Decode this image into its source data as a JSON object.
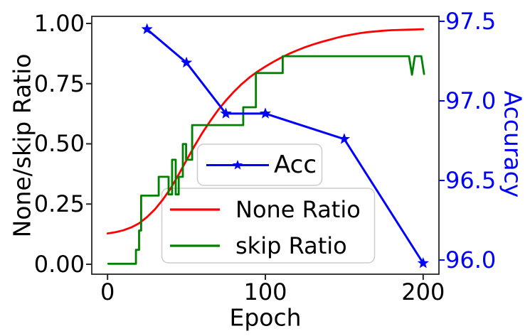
{
  "chart_data": {
    "type": "line",
    "xlabel": "Epoch",
    "ylabel_left": "None/skip Ratio",
    "ylabel_right": "Accuracy",
    "xlim": [
      -10,
      210
    ],
    "ylim_left": [
      -0.0413,
      1.0295
    ],
    "ylim_right": [
      95.911,
      97.531
    ],
    "grid": false,
    "x_ticks": {
      "labels": [
        "0",
        "100",
        "200"
      ],
      "values": [
        0,
        100,
        200
      ]
    },
    "y_ticks_left": {
      "labels": [
        "0.00",
        "0.25",
        "0.50",
        "0.75",
        "1.00"
      ],
      "values": [
        0,
        0.25,
        0.5,
        0.75,
        1.0
      ]
    },
    "y_ticks_right": {
      "labels": [
        "96.0",
        "96.5",
        "97.0",
        "97.5"
      ],
      "values": [
        96.0,
        96.5,
        97.0,
        97.5
      ]
    },
    "colors": {
      "acc": "#0000ff",
      "none_ratio": "#ff0000",
      "skip_ratio": "#008000",
      "spine": "#262626",
      "legend_edge": "#cccccc",
      "right_axis": "#0000ff"
    },
    "series": [
      {
        "name": "Acc",
        "axis": "right",
        "color": "#0000ff",
        "marker": "star",
        "x": [
          25,
          50,
          75,
          100,
          150,
          200
        ],
        "y": [
          97.45,
          97.24,
          96.92,
          96.92,
          96.76,
          95.98
        ]
      },
      {
        "name": "None Ratio",
        "axis": "left",
        "color": "#ff0000",
        "marker": "none",
        "x": [
          0,
          5,
          10,
          15,
          20,
          25,
          30,
          35,
          40,
          45,
          50,
          55,
          60,
          65,
          70,
          75,
          80,
          85,
          90,
          95,
          100,
          105,
          110,
          115,
          120,
          125,
          130,
          135,
          140,
          145,
          150,
          155,
          160,
          165,
          170,
          175,
          180,
          185,
          190,
          195,
          200
        ],
        "y": [
          0.128,
          0.133,
          0.141,
          0.153,
          0.17,
          0.196,
          0.228,
          0.268,
          0.315,
          0.372,
          0.432,
          0.49,
          0.545,
          0.594,
          0.64,
          0.68,
          0.716,
          0.748,
          0.776,
          0.8,
          0.821,
          0.84,
          0.858,
          0.874,
          0.888,
          0.901,
          0.912,
          0.922,
          0.931,
          0.94,
          0.948,
          0.954,
          0.96,
          0.964,
          0.967,
          0.97,
          0.972,
          0.973,
          0.974,
          0.975,
          0.976
        ]
      },
      {
        "name": "skip Ratio",
        "axis": "left",
        "color": "#008000",
        "marker": "none",
        "x": [
          0.5,
          18,
          18,
          20,
          20,
          21.3,
          21.3,
          32.4,
          32.4,
          38.7,
          38.7,
          40.9,
          40.9,
          43.2,
          43.2,
          45.1,
          45.1,
          47.7,
          47.7,
          49.8,
          49.8,
          53.6,
          53.6,
          86,
          86,
          94,
          94,
          111,
          111,
          191,
          192.9,
          194.7,
          198.8,
          200.6
        ],
        "y": [
          0.002,
          0.002,
          0.06,
          0.06,
          0.14,
          0.14,
          0.285,
          0.285,
          0.363,
          0.363,
          0.29,
          0.29,
          0.434,
          0.434,
          0.29,
          0.29,
          0.363,
          0.363,
          0.499,
          0.499,
          0.434,
          0.434,
          0.578,
          0.578,
          0.652,
          0.652,
          0.794,
          0.794,
          0.864,
          0.864,
          0.787,
          0.864,
          0.864,
          0.79
        ]
      }
    ],
    "legends": [
      {
        "entries": [
          "Acc"
        ]
      },
      {
        "entries": [
          "None Ratio",
          "skip Ratio"
        ]
      }
    ]
  }
}
